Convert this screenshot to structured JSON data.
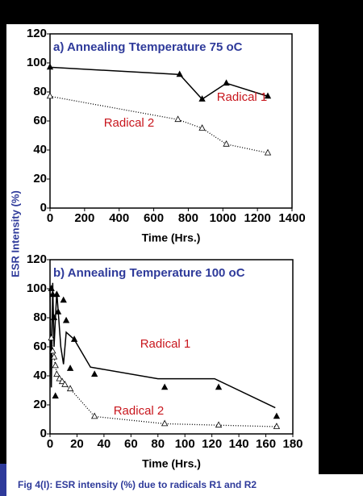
{
  "y_label": "ESR Intensity (%)",
  "caption": "Fig 4(I): ESR intensity (%) due to radicals R1 and R2",
  "chart_data": [
    {
      "type": "line",
      "title": "a)   Annealing Ttemperature 75 oC",
      "xlabel": "Time (Hrs.)",
      "xlim": [
        0,
        1400
      ],
      "xticks": [
        0,
        200,
        400,
        600,
        800,
        1000,
        1200,
        1400
      ],
      "ylim": [
        0,
        120
      ],
      "yticks": [
        0,
        20,
        40,
        60,
        80,
        100,
        120
      ],
      "series": [
        {
          "name": "Radical 1",
          "color": "#000000",
          "marker": "filled",
          "line": "solid",
          "x": [
            0,
            750,
            880,
            1020,
            1260
          ],
          "values": [
            97,
            92,
            75,
            86,
            77
          ]
        },
        {
          "name": "Radical 2",
          "color": "#000000",
          "marker": "open",
          "line": "dotted",
          "x": [
            0,
            740,
            880,
            1020,
            1260
          ],
          "values": [
            77,
            61,
            55,
            44,
            38
          ]
        }
      ]
    },
    {
      "type": "line",
      "title": "b) Annealing Temperature 100 oC",
      "xlabel": "Time (Hrs.)",
      "xlim": [
        0,
        180
      ],
      "xticks": [
        0,
        20,
        40,
        60,
        80,
        100,
        120,
        140,
        160,
        180
      ],
      "ylim": [
        0,
        120
      ],
      "yticks": [
        0,
        20,
        40,
        60,
        80,
        100,
        120
      ],
      "series": [
        {
          "name": "Radical 1",
          "color": "#000000",
          "marker": "filled",
          "line": "none",
          "x": [
            1,
            2,
            3,
            4,
            5,
            6,
            10,
            12,
            15,
            18,
            33,
            85,
            125,
            168
          ],
          "values": [
            100,
            96,
            80,
            26,
            96,
            84,
            92,
            78,
            45,
            65,
            41,
            32,
            32,
            12
          ]
        },
        {
          "color": "#000000",
          "marker": "none",
          "line": "solid",
          "x": [
            0,
            1,
            2,
            3,
            5,
            8,
            10,
            12,
            18,
            30,
            80,
            122,
            167
          ],
          "values": [
            100,
            32,
            104,
            60,
            98,
            60,
            48,
            70,
            65,
            46,
            38,
            38,
            18
          ]
        },
        {
          "name": "Radical 2",
          "color": "#000000",
          "marker": "open",
          "line": "dotted",
          "x": [
            1,
            2,
            3,
            4,
            5,
            7,
            9,
            11,
            15,
            33,
            85,
            125,
            168
          ],
          "values": [
            66,
            57,
            53,
            47,
            41,
            38,
            36,
            34,
            31,
            12,
            7,
            6,
            5
          ]
        }
      ]
    }
  ]
}
